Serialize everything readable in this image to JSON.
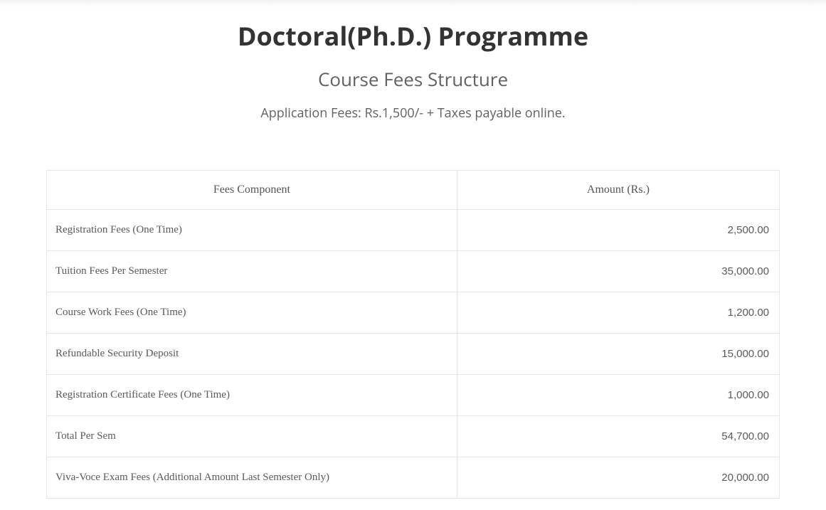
{
  "header": {
    "title": "Doctoral(Ph.D.) Programme",
    "subtitle": "Course Fees Structure",
    "application_fees": "Application Fees: Rs.1,500/- + Taxes payable online."
  },
  "fees_table": {
    "columns": [
      "Fees Component",
      "Amount (Rs.)"
    ],
    "column_widths_pct": [
      56,
      44
    ],
    "column_align": [
      "left",
      "right"
    ],
    "header_align": "center",
    "rows": [
      [
        "Registration Fees (One Time)",
        "2,500.00"
      ],
      [
        "Tuition Fees Per Semester",
        "35,000.00"
      ],
      [
        "Course Work Fees (One Time)",
        "1,200.00"
      ],
      [
        "Refundable Security Deposit",
        "15,000.00"
      ],
      [
        "Registration Certificate Fees (One Time)",
        "1,000.00"
      ],
      [
        "Total Per Sem",
        "54,700.00"
      ],
      [
        "Viva-Voce Exam Fees (Additional Amount Last Semester Only)",
        "20,000.00"
      ]
    ],
    "border_color": "#e6e6e6",
    "header_font": "serif",
    "component_font": "serif",
    "amount_font": "sans-serif",
    "text_color": "#5a5a5a",
    "header_text_color": "#545454",
    "background_color": "#ffffff"
  },
  "styling": {
    "title_color": "#333333",
    "title_fontsize": 36,
    "title_weight": 700,
    "subtitle_color": "#616161",
    "subtitle_fontsize": 26,
    "appfees_color": "#616161",
    "appfees_fontsize": 18,
    "page_background": "#ffffff",
    "top_gradient_from": "#f2f2f2",
    "top_gradient_to": "#ffffff"
  }
}
